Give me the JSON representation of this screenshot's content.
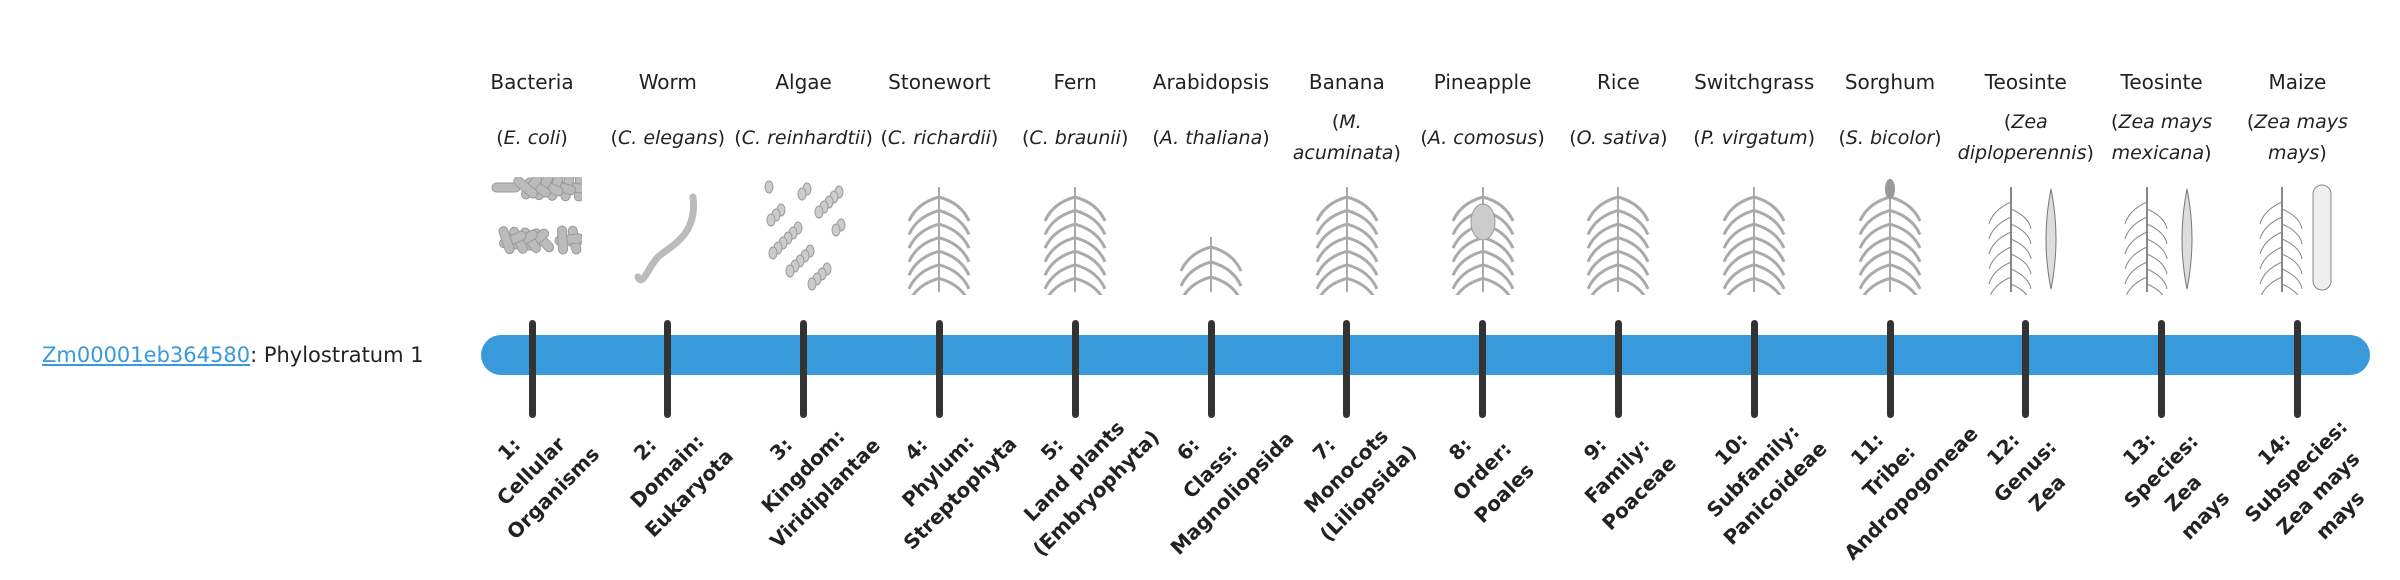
{
  "gene": {
    "id": "Zm00001eb364580",
    "suffix": ": Phylostratum 1"
  },
  "colors": {
    "bar": "#3899db",
    "tick": "#333333",
    "link": "#3899db"
  },
  "strata": [
    {
      "common": "Bacteria",
      "species": "E. coli",
      "icon": "bacteria-rods",
      "label": [
        "1:",
        "Cellular",
        "Organisms"
      ]
    },
    {
      "common": "Worm",
      "species": "C. elegans",
      "icon": "worm",
      "label": [
        "2:",
        "Domain:",
        "Eukaryota"
      ]
    },
    {
      "common": "Algae",
      "species": "C. reinhardtii",
      "icon": "algae-cells",
      "label": [
        "3:",
        "Kingdom:",
        "Viridiplantae"
      ]
    },
    {
      "common": "Stonewort",
      "species": "C. richardii",
      "icon": "stonewort",
      "label": [
        "4:",
        "Phylum:",
        "Streptophyta"
      ]
    },
    {
      "common": "Fern",
      "species": "C. braunii",
      "icon": "fern",
      "label": [
        "5:",
        "Land plants",
        "(Embryophyta)"
      ]
    },
    {
      "common": "Arabidopsis",
      "species": "A. thaliana",
      "icon": "arabidopsis",
      "label": [
        "6:",
        "Class:",
        "Magnoliopsida"
      ]
    },
    {
      "common": "Banana",
      "species": "M. acuminata",
      "icon": "banana-tree",
      "label": [
        "7:",
        "Monocots",
        "(Liliopsida)"
      ]
    },
    {
      "common": "Pineapple",
      "species": "A. comosus",
      "icon": "pineapple",
      "label": [
        "8:",
        "Order:",
        "Poales"
      ]
    },
    {
      "common": "Rice",
      "species": "O. sativa",
      "icon": "rice",
      "label": [
        "9:",
        "Family:",
        "Poaceae"
      ]
    },
    {
      "common": "Switchgrass",
      "species": "P. virgatum",
      "icon": "switchgrass",
      "label": [
        "10:",
        "Subfamily:",
        "Panicoideae"
      ]
    },
    {
      "common": "Sorghum",
      "species": "S. bicolor",
      "icon": "sorghum",
      "label": [
        "11:",
        "Tribe:",
        "Andropogoneae"
      ]
    },
    {
      "common": "Teosinte",
      "species": "Zea diploperennis",
      "icon": "teosinte",
      "label": [
        "12:",
        "Genus:",
        "Zea"
      ]
    },
    {
      "common": "Teosinte",
      "species": "Zea mays mexicana",
      "icon": "teosinte",
      "label": [
        "13:",
        "Species:",
        "Zea",
        "mays"
      ]
    },
    {
      "common": "Maize",
      "species": "Zea mays mays",
      "icon": "maize",
      "label": [
        "14:",
        "Subspecies:",
        "Zea mays",
        "mays"
      ]
    }
  ]
}
